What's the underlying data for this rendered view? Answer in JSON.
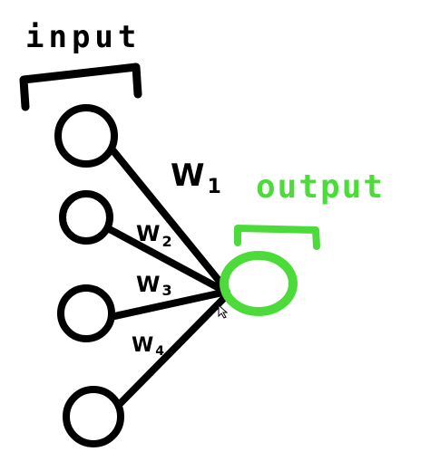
{
  "diagram": {
    "input_label": "input",
    "output_label": "output",
    "weights": [
      "W1",
      "W2",
      "W3",
      "W4"
    ],
    "weight_display": [
      "W",
      "W",
      "W",
      "W"
    ],
    "weight_subscripts": [
      "1",
      "2",
      "3",
      "4"
    ],
    "colors": {
      "ink": "#000000",
      "output": "#4cdb3a",
      "background": "#ffffff"
    }
  }
}
